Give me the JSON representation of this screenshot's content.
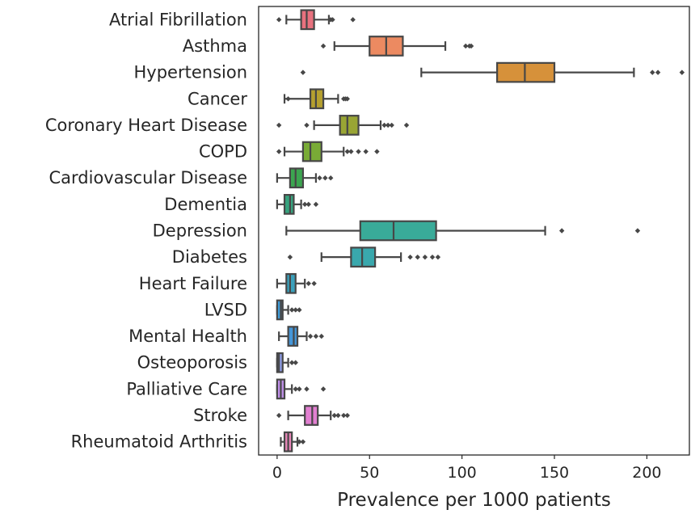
{
  "chart_data": {
    "type": "boxplot",
    "orientation": "horizontal",
    "title": "",
    "xlabel": "Prevalence per 1000 patients",
    "ylabel": "",
    "xlim": [
      -10,
      223
    ],
    "xticks": [
      0,
      50,
      100,
      150,
      200
    ],
    "xtick_labels": [
      "0",
      "50",
      "100",
      "150",
      "200"
    ],
    "grid": false,
    "categories": [
      {
        "name": "Atrial Fibrillation",
        "color": "#e8717e",
        "whislo": 5,
        "q1": 13,
        "median": 16,
        "q3": 20,
        "whishi": 28,
        "fliers": [
          1,
          29,
          30,
          41
        ]
      },
      {
        "name": "Asthma",
        "color": "#ec8a61",
        "whislo": 31,
        "q1": 50,
        "median": 59,
        "q3": 68,
        "whishi": 91,
        "fliers": [
          25,
          102,
          104,
          105
        ]
      },
      {
        "name": "Hypertension",
        "color": "#d6913a",
        "whislo": 78,
        "q1": 119,
        "median": 134,
        "q3": 150,
        "whishi": 193,
        "fliers": [
          14,
          203,
          206,
          219
        ]
      },
      {
        "name": "Cancer",
        "color": "#b5a02f",
        "whislo": 4,
        "q1": 18,
        "median": 21,
        "q3": 25,
        "whishi": 33,
        "fliers": [
          6,
          36,
          37,
          38
        ]
      },
      {
        "name": "Coronary Heart Disease",
        "color": "#99a534",
        "whislo": 20,
        "q1": 34,
        "median": 38,
        "q3": 44,
        "whishi": 56,
        "fliers": [
          1,
          16,
          58,
          60,
          62,
          70
        ]
      },
      {
        "name": "COPD",
        "color": "#79ab36",
        "whislo": 4,
        "q1": 14,
        "median": 18,
        "q3": 24,
        "whishi": 36,
        "fliers": [
          1,
          38,
          40,
          44,
          48,
          54
        ]
      },
      {
        "name": "Cardiovascular Disease",
        "color": "#3ca550",
        "whislo": 0,
        "q1": 7,
        "median": 10,
        "q3": 14,
        "whishi": 21,
        "fliers": [
          23,
          26,
          29
        ]
      },
      {
        "name": "Dementia",
        "color": "#36a37e",
        "whislo": 0,
        "q1": 4,
        "median": 7,
        "q3": 9,
        "whishi": 13,
        "fliers": [
          15,
          17,
          21
        ]
      },
      {
        "name": "Depression",
        "color": "#39ab99",
        "whislo": 5,
        "q1": 45,
        "median": 63,
        "q3": 86,
        "whishi": 145,
        "fliers": [
          154,
          195
        ]
      },
      {
        "name": "Diabetes",
        "color": "#39a8ad",
        "whislo": 24,
        "q1": 40,
        "median": 46,
        "q3": 53,
        "whishi": 67,
        "fliers": [
          7,
          72,
          76,
          80,
          84,
          87
        ]
      },
      {
        "name": "Heart Failure",
        "color": "#3aa0bb",
        "whislo": 0,
        "q1": 5,
        "median": 7,
        "q3": 10,
        "whishi": 15,
        "fliers": [
          17,
          20
        ]
      },
      {
        "name": "LVSD",
        "color": "#3f9bd6",
        "whislo": 0,
        "q1": 0,
        "median": 2,
        "q3": 3,
        "whishi": 6,
        "fliers": [
          8,
          10,
          12
        ]
      },
      {
        "name": "Mental Health",
        "color": "#4596d8",
        "whislo": 1,
        "q1": 6,
        "median": 9,
        "q3": 11,
        "whishi": 16,
        "fliers": [
          18,
          21,
          24
        ]
      },
      {
        "name": "Osteoporosis",
        "color": "#8f9ce6",
        "whislo": 0,
        "q1": 0,
        "median": 1,
        "q3": 3,
        "whishi": 6,
        "fliers": [
          8,
          10
        ]
      },
      {
        "name": "Palliative Care",
        "color": "#bf8fe8",
        "whislo": 0,
        "q1": 0,
        "median": 2,
        "q3": 4,
        "whishi": 8,
        "fliers": [
          10,
          12,
          16,
          25
        ]
      },
      {
        "name": "Stroke",
        "color": "#e27fd1",
        "whislo": 6,
        "q1": 15,
        "median": 19,
        "q3": 22,
        "whishi": 29,
        "fliers": [
          1,
          31,
          33,
          36,
          38
        ]
      },
      {
        "name": "Rheumatoid Arthritis",
        "color": "#e987b9",
        "whislo": 2,
        "q1": 4,
        "median": 6,
        "q3": 8,
        "whishi": 11,
        "fliers": [
          12,
          14
        ]
      }
    ]
  }
}
